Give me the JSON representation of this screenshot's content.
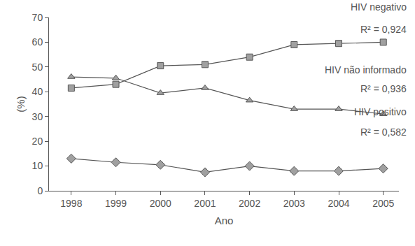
{
  "chart_data": {
    "type": "line",
    "x_label": "Ano",
    "y_label": "(%)",
    "x": [
      1998,
      1999,
      2000,
      2001,
      2002,
      2003,
      2004,
      2005
    ],
    "xlim": [
      1997.5,
      2005.35
    ],
    "xticks": [
      1998,
      1999,
      2000,
      2001,
      2002,
      2003,
      2004,
      2005
    ],
    "ylim": [
      0,
      70
    ],
    "yticks": [
      0,
      10,
      20,
      30,
      40,
      50,
      60,
      70
    ],
    "grid": false,
    "series": [
      {
        "name": "HIV negativo",
        "color": "#a0a0a0",
        "marker": "square",
        "values": [
          41.5,
          43,
          50.5,
          51,
          54,
          59,
          59.5,
          60
        ]
      },
      {
        "name": "HIV não informado",
        "color": "#a0a0a0",
        "marker": "triangle",
        "values": [
          46,
          45.5,
          39.5,
          41.5,
          36.5,
          33,
          33,
          31
        ]
      },
      {
        "name": "HIV positivo",
        "color": "#a0a0a0",
        "marker": "diamond",
        "values": [
          13,
          11.5,
          10.5,
          7.5,
          10,
          8,
          8,
          9
        ]
      }
    ],
    "annotations": [
      {
        "text": "R² = 0,924",
        "series": "HIV negativo"
      },
      {
        "text": "R² = 0,936",
        "series": "HIV não informado"
      },
      {
        "text": "R² = 0,582",
        "series": "HIV positivo"
      }
    ]
  }
}
